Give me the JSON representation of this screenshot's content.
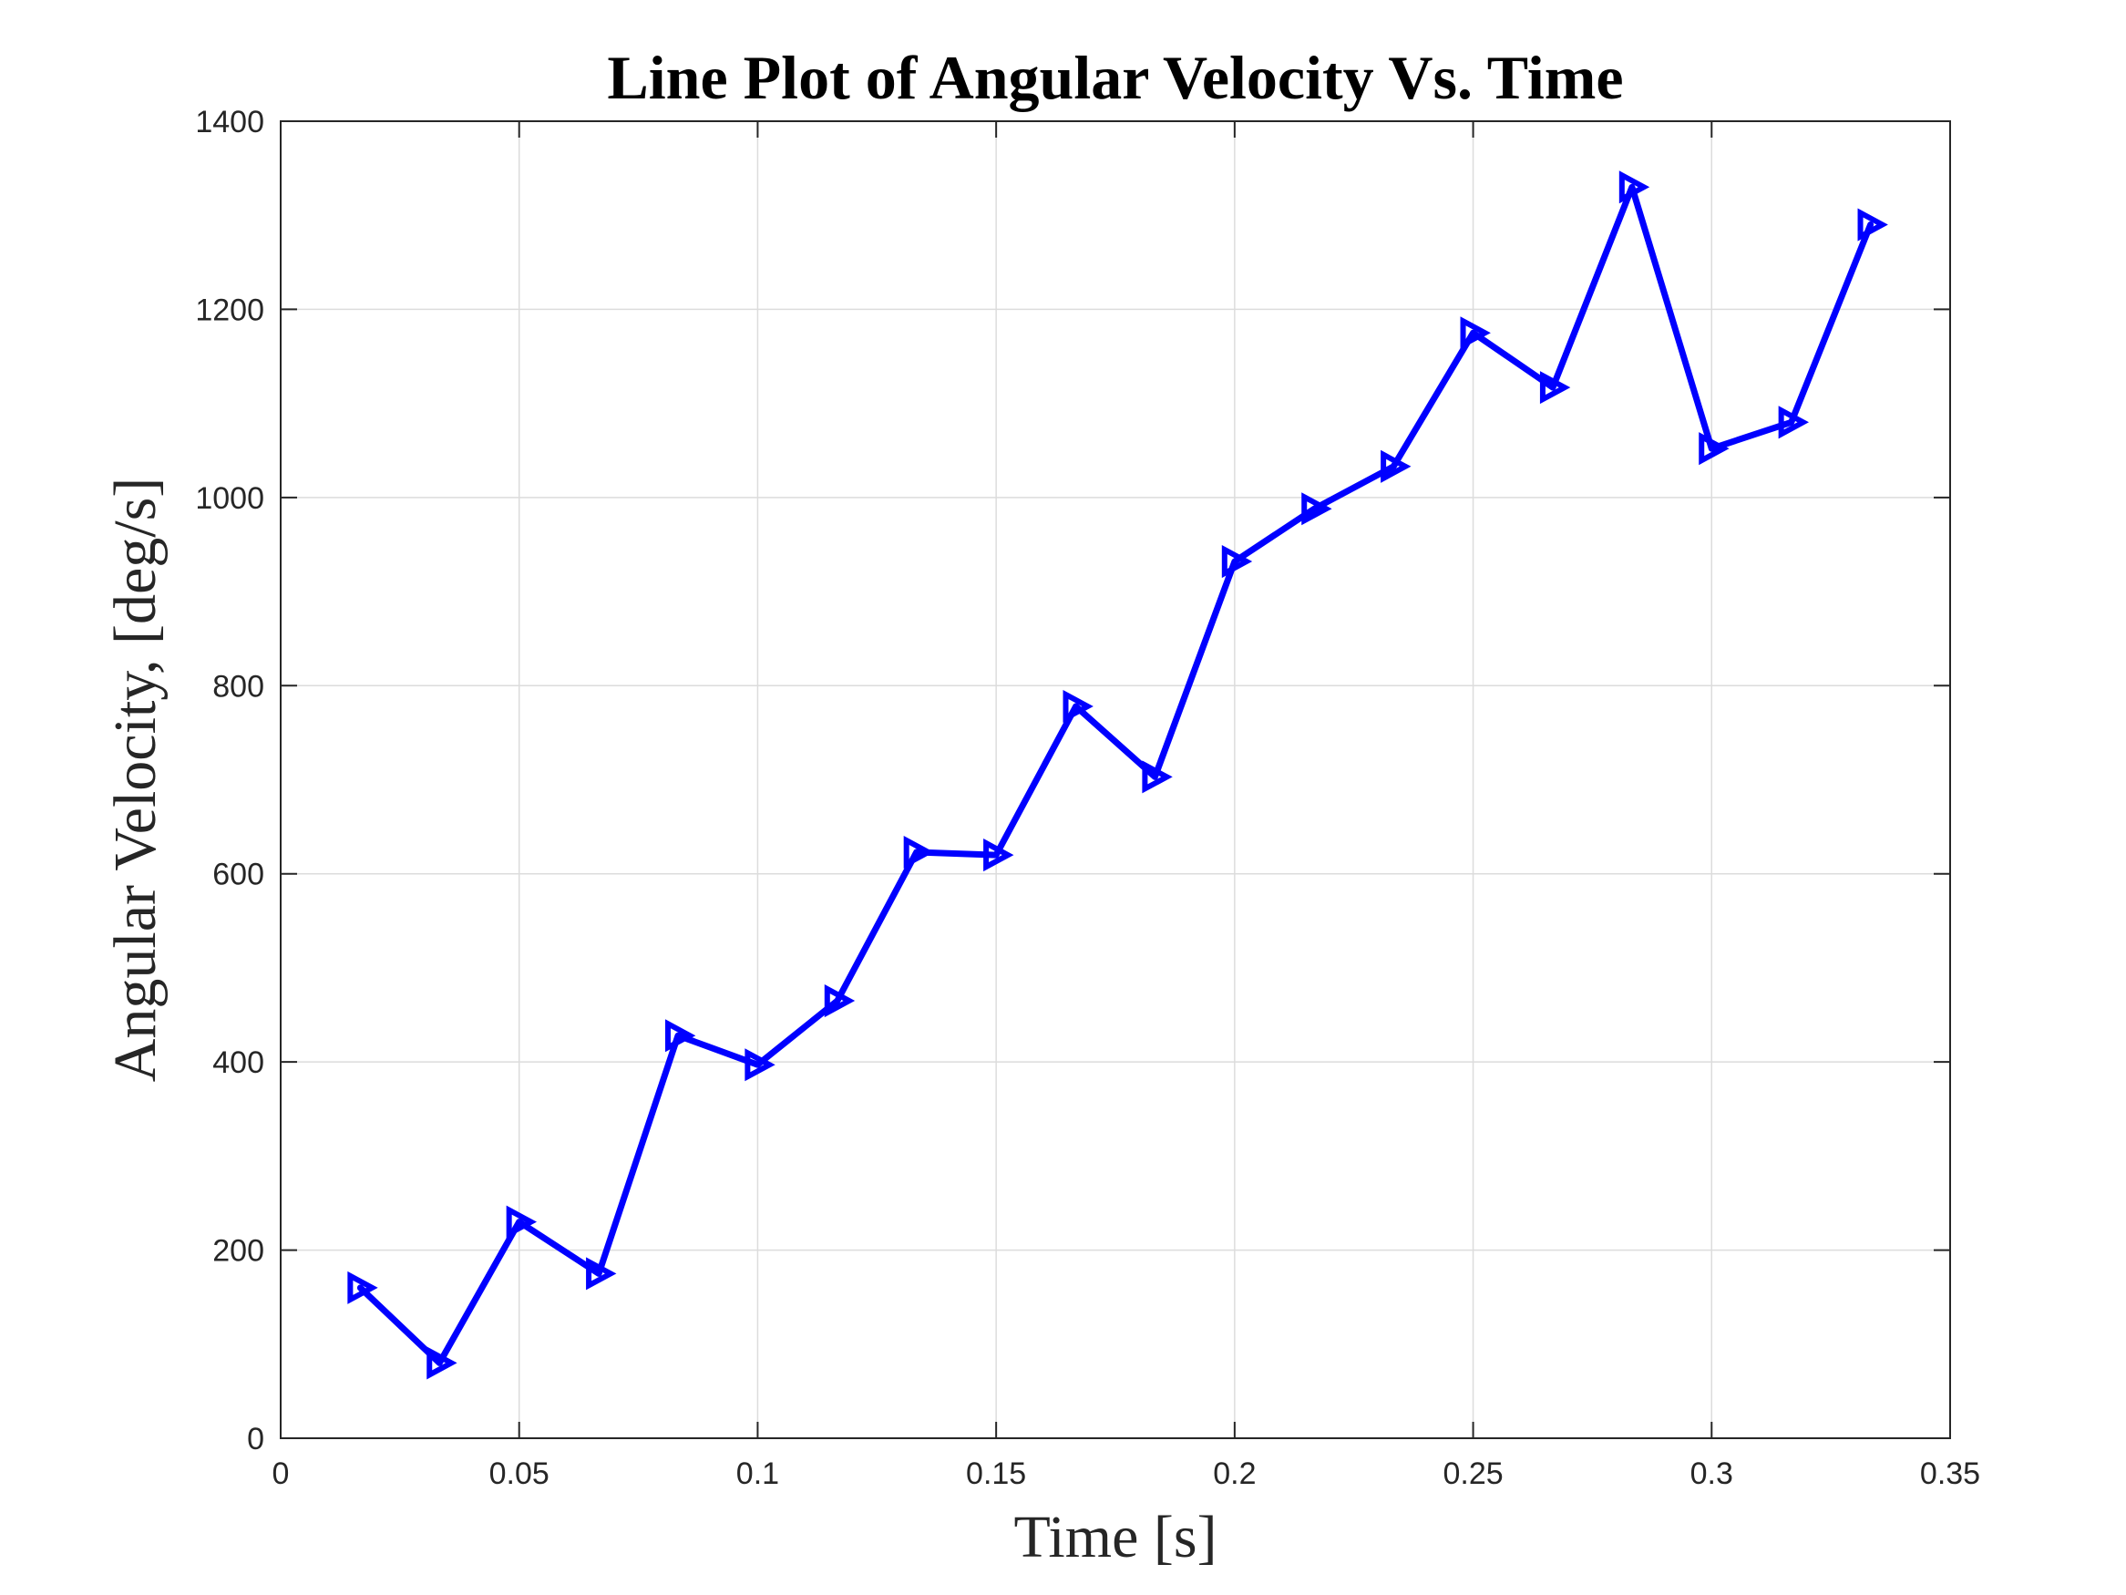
{
  "chart_data": {
    "type": "line",
    "title": "Line Plot of Angular Velocity Vs. Time",
    "xlabel": "Time [s]",
    "ylabel": "Angular Velocity, [deg/s]",
    "xlim": [
      0,
      0.35
    ],
    "ylim": [
      0,
      1400
    ],
    "xticks": [
      0,
      0.05,
      0.1,
      0.15,
      0.2,
      0.25,
      0.3,
      0.35
    ],
    "xtick_labels": [
      "0",
      "0.05",
      "0.1",
      "0.15",
      "0.2",
      "0.25",
      "0.3",
      "0.35"
    ],
    "yticks": [
      0,
      200,
      400,
      600,
      800,
      1000,
      1200,
      1400
    ],
    "ytick_labels": [
      "0",
      "200",
      "400",
      "600",
      "800",
      "1000",
      "1200",
      "1400"
    ],
    "grid": true,
    "series": [
      {
        "color": "#0000ff",
        "marker": "triangle-right",
        "x": [
          0.0167,
          0.0333,
          0.05,
          0.0667,
          0.0833,
          0.1,
          0.1167,
          0.1333,
          0.15,
          0.1667,
          0.1833,
          0.2,
          0.2167,
          0.2333,
          0.25,
          0.2667,
          0.2833,
          0.3,
          0.3167,
          0.3333
        ],
        "y": [
          160,
          80,
          230,
          175,
          428,
          397,
          465,
          623,
          620,
          778,
          703,
          932,
          988,
          1033,
          1175,
          1117,
          1330,
          1052,
          1080,
          1290
        ]
      }
    ]
  }
}
